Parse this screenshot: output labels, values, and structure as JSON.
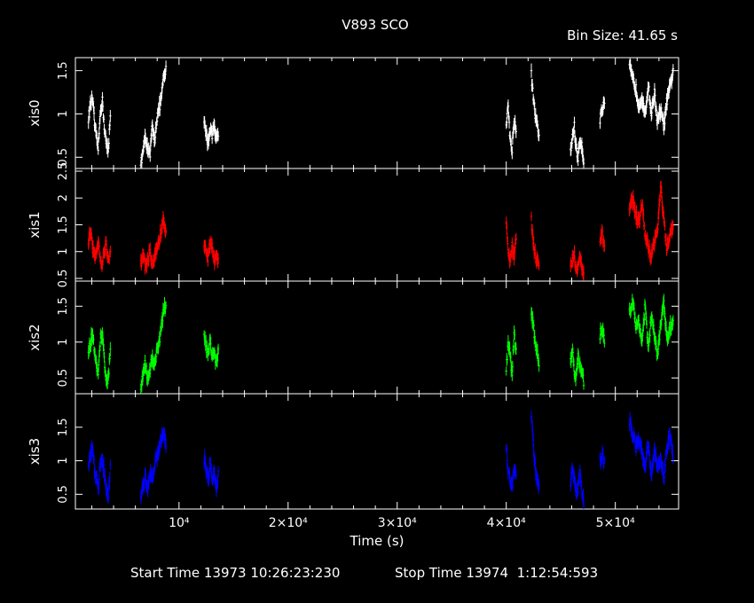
{
  "chart_data": {
    "type": "scatter",
    "title": "V893 SCO",
    "bin_size": "Bin Size: 41.65 s",
    "xlabel": "Time (s)",
    "x_range": [
      500,
      55800
    ],
    "x_ticks": [
      {
        "value": 10000,
        "label": "10⁴"
      },
      {
        "value": 20000,
        "label": "2×10⁴"
      },
      {
        "value": 30000,
        "label": "3×10⁴"
      },
      {
        "value": 40000,
        "label": "4×10⁴"
      },
      {
        "value": 50000,
        "label": "5×10⁴"
      }
    ],
    "panels": [
      {
        "name": "xis0",
        "color": "#ffffff",
        "ylim": [
          0.37,
          1.65
        ],
        "y_ticks": [
          {
            "value": 0.5,
            "label": "0.5"
          },
          {
            "value": 1,
            "label": "1"
          },
          {
            "value": 1.5,
            "label": "1.5"
          }
        ],
        "segments": [
          {
            "x0": 1700,
            "x1": 3700,
            "y": [
              0.95,
              1.1,
              1.2,
              0.9,
              0.7,
              0.6,
              1.05,
              1.15,
              0.85,
              0.65,
              0.55,
              1.0
            ]
          },
          {
            "x0": 6500,
            "x1": 8800,
            "y": [
              0.45,
              0.55,
              0.75,
              0.6,
              0.5,
              0.85,
              0.7,
              0.95,
              1.05,
              1.2,
              1.4,
              1.5
            ]
          },
          {
            "x0": 12300,
            "x1": 13600,
            "y": [
              0.9,
              0.8,
              0.65,
              0.85,
              0.75,
              0.9,
              0.7,
              0.8
            ]
          },
          {
            "x0": 40000,
            "x1": 40900,
            "y": [
              0.85,
              1.1,
              0.7,
              0.6,
              0.95,
              0.8
            ]
          },
          {
            "x0": 42300,
            "x1": 43000,
            "y": [
              1.45,
              1.1,
              0.9,
              0.75
            ]
          },
          {
            "x0": 45900,
            "x1": 47100,
            "y": [
              0.55,
              0.75,
              0.85,
              0.6,
              0.5,
              0.7,
              0.65,
              0.45
            ]
          },
          {
            "x0": 48600,
            "x1": 49000,
            "y": [
              0.95,
              1.05,
              1.1
            ]
          },
          {
            "x0": 51300,
            "x1": 55300,
            "y": [
              1.55,
              1.4,
              1.3,
              1.1,
              1.2,
              0.95,
              1.35,
              1.0,
              1.25,
              0.9,
              1.05,
              0.85,
              1.15,
              1.3,
              1.5
            ]
          }
        ]
      },
      {
        "name": "xis1",
        "color": "#ff0000",
        "ylim": [
          0.45,
          2.55
        ],
        "y_ticks": [
          {
            "value": 0.5,
            "label": "0.5"
          },
          {
            "value": 1,
            "label": "1"
          },
          {
            "value": 1.5,
            "label": "1.5"
          },
          {
            "value": 2,
            "label": "2"
          },
          {
            "value": 2.5,
            "label": "2.5"
          }
        ],
        "segments": [
          {
            "x0": 1700,
            "x1": 3700,
            "y": [
              1.2,
              1.35,
              1.1,
              0.9,
              1.0,
              1.25,
              0.85,
              0.75,
              1.05,
              1.15,
              0.8,
              0.95
            ]
          },
          {
            "x0": 6500,
            "x1": 8800,
            "y": [
              0.8,
              0.95,
              0.7,
              0.85,
              1.0,
              0.75,
              0.9,
              1.05,
              1.2,
              1.4,
              1.6,
              1.3
            ]
          },
          {
            "x0": 12300,
            "x1": 13600,
            "y": [
              1.15,
              1.0,
              0.9,
              1.2,
              1.05,
              0.85,
              1.0,
              0.8
            ]
          },
          {
            "x0": 40000,
            "x1": 40900,
            "y": [
              1.5,
              1.0,
              0.85,
              1.1,
              0.9,
              1.3
            ]
          },
          {
            "x0": 42300,
            "x1": 43000,
            "y": [
              1.6,
              1.1,
              0.85,
              0.75
            ]
          },
          {
            "x0": 45900,
            "x1": 47100,
            "y": [
              0.7,
              0.85,
              0.95,
              0.6,
              0.75,
              0.9,
              0.65,
              0.55
            ]
          },
          {
            "x0": 48600,
            "x1": 49000,
            "y": [
              1.2,
              1.3,
              1.15
            ]
          },
          {
            "x0": 51300,
            "x1": 55300,
            "y": [
              1.8,
              2.0,
              1.7,
              1.5,
              1.9,
              1.3,
              1.1,
              0.9,
              1.2,
              1.4,
              2.2,
              1.6,
              1.0,
              1.3,
              1.5
            ]
          }
        ]
      },
      {
        "name": "xis2",
        "color": "#00ff00",
        "ylim": [
          0.28,
          1.85
        ],
        "y_ticks": [
          {
            "value": 0.5,
            "label": "0.5"
          },
          {
            "value": 1,
            "label": "1"
          },
          {
            "value": 1.5,
            "label": "1.5"
          }
        ],
        "segments": [
          {
            "x0": 1700,
            "x1": 3700,
            "y": [
              0.85,
              1.0,
              1.15,
              0.9,
              0.65,
              0.55,
              1.05,
              1.1,
              0.75,
              0.5,
              0.45,
              0.95
            ]
          },
          {
            "x0": 6500,
            "x1": 8800,
            "y": [
              0.4,
              0.55,
              0.7,
              0.5,
              0.6,
              0.8,
              0.65,
              0.9,
              1.0,
              1.2,
              1.45,
              1.5
            ]
          },
          {
            "x0": 12300,
            "x1": 13600,
            "y": [
              1.1,
              0.95,
              0.8,
              1.0,
              0.75,
              0.9,
              0.7,
              0.85
            ]
          },
          {
            "x0": 40000,
            "x1": 40900,
            "y": [
              0.65,
              1.0,
              0.8,
              0.55,
              1.1,
              0.9
            ]
          },
          {
            "x0": 42300,
            "x1": 43000,
            "y": [
              1.45,
              1.15,
              0.9,
              0.7
            ]
          },
          {
            "x0": 45900,
            "x1": 47100,
            "y": [
              0.75,
              0.9,
              0.6,
              0.5,
              0.8,
              0.65,
              0.55,
              0.45
            ]
          },
          {
            "x0": 48600,
            "x1": 49000,
            "y": [
              1.1,
              1.2,
              1.05
            ]
          },
          {
            "x0": 51300,
            "x1": 55300,
            "y": [
              1.4,
              1.6,
              1.2,
              1.3,
              1.0,
              1.5,
              0.9,
              1.35,
              1.1,
              0.8,
              1.25,
              1.55,
              1.0,
              1.2,
              1.3
            ]
          }
        ]
      },
      {
        "name": "xis3",
        "color": "#0000ff",
        "ylim": [
          0.28,
          2.0
        ],
        "y_ticks": [
          {
            "value": 0.5,
            "label": "0.5"
          },
          {
            "value": 1,
            "label": "1"
          },
          {
            "value": 1.5,
            "label": "1.5"
          }
        ],
        "segments": [
          {
            "x0": 1700,
            "x1": 3700,
            "y": [
              0.95,
              1.1,
              1.2,
              0.9,
              0.75,
              0.55,
              1.0,
              1.05,
              0.8,
              0.6,
              0.45,
              0.9
            ]
          },
          {
            "x0": 6500,
            "x1": 8800,
            "y": [
              0.5,
              0.6,
              0.75,
              0.55,
              0.85,
              0.7,
              0.95,
              1.05,
              1.2,
              1.35,
              1.45,
              1.25
            ]
          },
          {
            "x0": 12300,
            "x1": 13600,
            "y": [
              1.05,
              0.9,
              0.75,
              0.95,
              0.7,
              0.85,
              0.6,
              0.8
            ]
          },
          {
            "x0": 40000,
            "x1": 40900,
            "y": [
              1.2,
              0.85,
              0.7,
              0.6,
              0.9,
              0.75
            ]
          },
          {
            "x0": 42300,
            "x1": 43000,
            "y": [
              1.7,
              1.1,
              0.75,
              0.6
            ]
          },
          {
            "x0": 45900,
            "x1": 47100,
            "y": [
              0.65,
              0.9,
              0.75,
              0.5,
              0.6,
              0.8,
              0.55,
              0.4
            ]
          },
          {
            "x0": 48600,
            "x1": 49000,
            "y": [
              1.0,
              1.1,
              0.95
            ]
          },
          {
            "x0": 51300,
            "x1": 55300,
            "y": [
              1.6,
              1.4,
              1.2,
              1.3,
              1.1,
              0.95,
              1.25,
              0.8,
              1.15,
              0.9,
              1.05,
              0.75,
              1.2,
              1.35,
              1.1
            ]
          }
        ]
      }
    ]
  },
  "footer": {
    "start_time": "Start Time 13973 10:26:23:230",
    "stop_time": "Stop Time 13974  1:12:54:593"
  }
}
